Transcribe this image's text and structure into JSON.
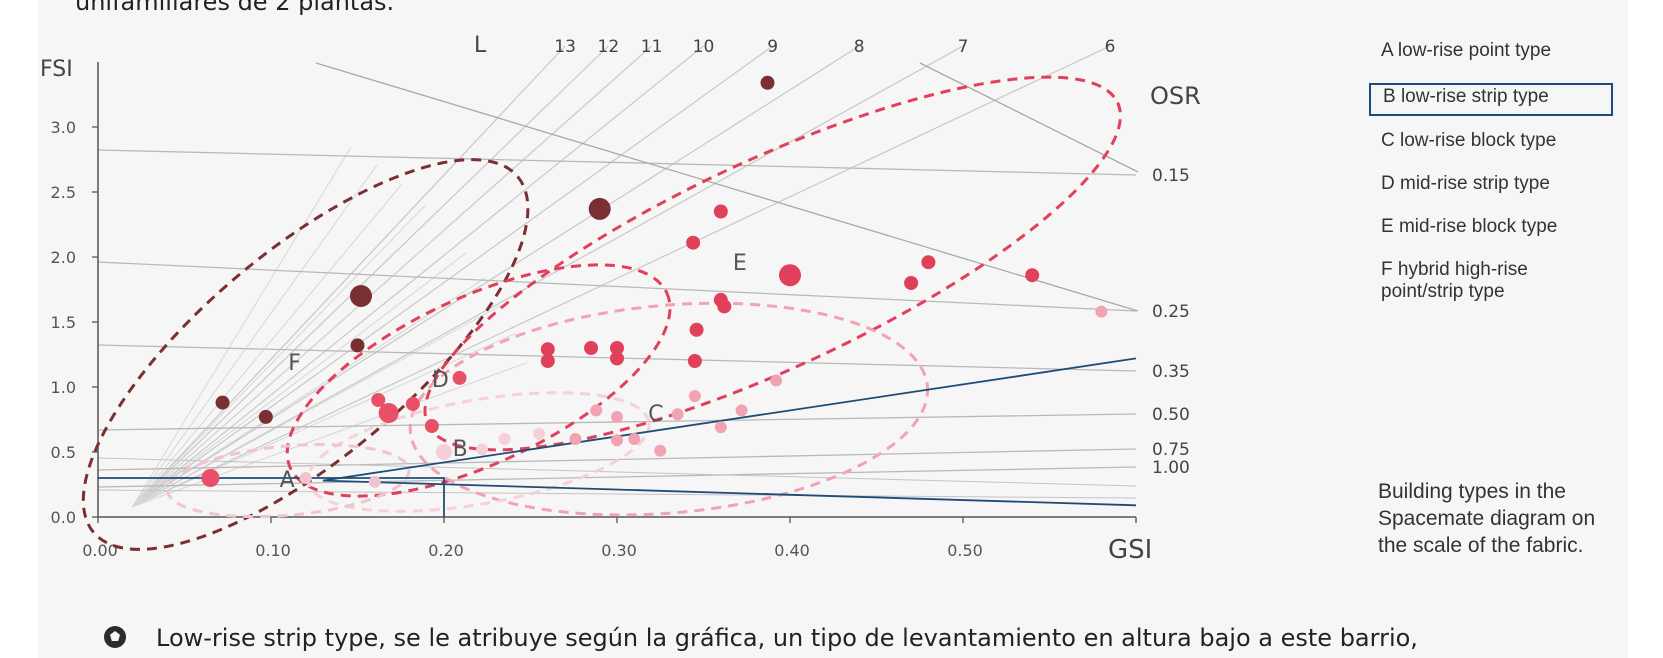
{
  "top_text": "unifamiliares de 2 plantas.",
  "bottom_text": "Low-rise strip type, se le atribuye según la gráfica, un tipo de levantamiento en altura bajo a este barrio,",
  "legend": {
    "items": [
      {
        "letter": "A",
        "text": "A  low-rise point type",
        "boxed": false
      },
      {
        "letter": "B",
        "text": "B  low-rise strip type",
        "boxed": true
      },
      {
        "letter": "C",
        "text": "C  low-rise block type",
        "boxed": false
      },
      {
        "letter": "D",
        "text": "D  mid-rise strip type",
        "boxed": false
      },
      {
        "letter": "E",
        "text": "E  mid-rise block type",
        "boxed": false
      },
      {
        "letter": "F",
        "text": "F  hybrid high-rise point/strip type",
        "boxed": false
      }
    ],
    "note": "Building types in the Spacemate diagram on the scale of the fabric."
  },
  "bullet_icon": "pentagon-bullet-icon",
  "chart_data": {
    "type": "scatter",
    "xlabel": "GSI",
    "ylabel": "FSI",
    "xlim": [
      0,
      0.6
    ],
    "ylim": [
      0,
      3.5
    ],
    "x_ticks": [
      "0.00",
      "0.10",
      "0.20",
      "0.30",
      "0.40",
      "0.50"
    ],
    "y_ticks": [
      "0.0",
      "0.5",
      "1.0",
      "1.5",
      "2.0",
      "2.5",
      "3.0"
    ],
    "l_label": "L",
    "l_values": [
      13,
      12,
      11,
      10,
      9,
      8,
      7,
      6
    ],
    "l_label_positions": [
      0.27,
      0.295,
      0.32,
      0.35,
      0.39,
      0.44,
      0.5,
      0.585
    ],
    "osr_label": "OSR",
    "osr_values": [
      "0.15",
      "0.25",
      "0.35",
      "0.50",
      "0.75",
      "1.00"
    ],
    "colors": {
      "F": "#7a2f33",
      "D": "#e8506a",
      "E": "#e0405a",
      "C": "#f2a3b3",
      "B": "#f6d0d8",
      "A": "#f0c4cf",
      "annotation_line": "#1e4c78"
    },
    "series": [
      {
        "name": "F",
        "points": [
          {
            "x": 0.072,
            "y": 0.88,
            "r": 7
          },
          {
            "x": 0.097,
            "y": 0.77,
            "r": 7
          },
          {
            "x": 0.15,
            "y": 1.32,
            "r": 7
          },
          {
            "x": 0.152,
            "y": 1.7,
            "r": 11
          },
          {
            "x": 0.29,
            "y": 2.37,
            "r": 11
          },
          {
            "x": 0.387,
            "y": 3.34,
            "r": 7
          }
        ]
      },
      {
        "name": "D",
        "points": [
          {
            "x": 0.162,
            "y": 0.9,
            "r": 7
          },
          {
            "x": 0.168,
            "y": 0.8,
            "r": 10
          },
          {
            "x": 0.182,
            "y": 0.87,
            "r": 7
          },
          {
            "x": 0.193,
            "y": 0.7,
            "r": 7
          },
          {
            "x": 0.209,
            "y": 1.07,
            "r": 7
          },
          {
            "x": 0.065,
            "y": 0.3,
            "r": 9
          }
        ]
      },
      {
        "name": "E",
        "points": [
          {
            "x": 0.26,
            "y": 1.29,
            "r": 7
          },
          {
            "x": 0.26,
            "y": 1.2,
            "r": 7
          },
          {
            "x": 0.285,
            "y": 1.3,
            "r": 7
          },
          {
            "x": 0.3,
            "y": 1.3,
            "r": 7
          },
          {
            "x": 0.3,
            "y": 1.22,
            "r": 7
          },
          {
            "x": 0.345,
            "y": 1.2,
            "r": 7
          },
          {
            "x": 0.346,
            "y": 1.44,
            "r": 7
          },
          {
            "x": 0.344,
            "y": 2.11,
            "r": 7
          },
          {
            "x": 0.36,
            "y": 2.35,
            "r": 7
          },
          {
            "x": 0.36,
            "y": 1.67,
            "r": 7
          },
          {
            "x": 0.362,
            "y": 1.62,
            "r": 7
          },
          {
            "x": 0.4,
            "y": 1.86,
            "r": 11
          },
          {
            "x": 0.47,
            "y": 1.8,
            "r": 7
          },
          {
            "x": 0.48,
            "y": 1.96,
            "r": 7
          },
          {
            "x": 0.54,
            "y": 1.86,
            "r": 7
          }
        ]
      },
      {
        "name": "C",
        "points": [
          {
            "x": 0.276,
            "y": 0.6,
            "r": 6
          },
          {
            "x": 0.288,
            "y": 0.82,
            "r": 6
          },
          {
            "x": 0.3,
            "y": 0.77,
            "r": 6
          },
          {
            "x": 0.3,
            "y": 0.59,
            "r": 6
          },
          {
            "x": 0.31,
            "y": 0.6,
            "r": 6
          },
          {
            "x": 0.325,
            "y": 0.51,
            "r": 6
          },
          {
            "x": 0.335,
            "y": 0.79,
            "r": 6
          },
          {
            "x": 0.345,
            "y": 0.93,
            "r": 6
          },
          {
            "x": 0.36,
            "y": 0.69,
            "r": 6
          },
          {
            "x": 0.372,
            "y": 0.82,
            "r": 6
          },
          {
            "x": 0.392,
            "y": 1.05,
            "r": 6
          },
          {
            "x": 0.58,
            "y": 1.58,
            "r": 6
          }
        ]
      },
      {
        "name": "B",
        "points": [
          {
            "x": 0.2,
            "y": 0.5,
            "r": 8
          },
          {
            "x": 0.222,
            "y": 0.52,
            "r": 6
          },
          {
            "x": 0.235,
            "y": 0.6,
            "r": 6
          },
          {
            "x": 0.255,
            "y": 0.64,
            "r": 6
          }
        ]
      },
      {
        "name": "A",
        "points": [
          {
            "x": 0.12,
            "y": 0.3,
            "r": 6
          },
          {
            "x": 0.16,
            "y": 0.27,
            "r": 6
          }
        ]
      }
    ],
    "cluster_labels": [
      {
        "text": "A",
        "x": 0.105,
        "y": 0.23
      },
      {
        "text": "B",
        "x": 0.205,
        "y": 0.47
      },
      {
        "text": "C",
        "x": 0.318,
        "y": 0.74
      },
      {
        "text": "D",
        "x": 0.193,
        "y": 1.0
      },
      {
        "text": "E",
        "x": 0.367,
        "y": 1.9
      },
      {
        "text": "F",
        "x": 0.11,
        "y": 1.13
      }
    ],
    "clusters": [
      {
        "name": "F",
        "cx": 0.12,
        "cy": 1.25,
        "rx": 0.16,
        "ry": 0.06,
        "rot": -40,
        "color": "#7a2f33"
      },
      {
        "name": "D",
        "cx": 0.22,
        "cy": 1.05,
        "rx": 0.12,
        "ry": 0.048,
        "rot": -25,
        "color": "#e0405a"
      },
      {
        "name": "E",
        "cx": 0.39,
        "cy": 1.95,
        "rx": 0.22,
        "ry": 0.06,
        "rot": -25,
        "color": "#e0405a"
      },
      {
        "name": "C",
        "cx": 0.33,
        "cy": 0.83,
        "rx": 0.15,
        "ry": 0.06,
        "rot": -5,
        "color": "#f2a3b3"
      },
      {
        "name": "B",
        "cx": 0.22,
        "cy": 0.5,
        "rx": 0.1,
        "ry": 0.03,
        "rot": -10,
        "color": "#f6d0d8"
      },
      {
        "name": "A",
        "cx": 0.11,
        "cy": 0.28,
        "rx": 0.07,
        "ry": 0.02,
        "rot": -5,
        "color": "#f0c4cf"
      }
    ],
    "annotation": {
      "guide_point": {
        "x": 0.2,
        "y": 0.3
      },
      "triangle_apex": {
        "x": 0.13,
        "y": 0.28
      },
      "triangle_top": {
        "x": 0.6,
        "y": 1.22
      },
      "triangle_bottom": {
        "x": 0.6,
        "y": 0.09
      }
    }
  }
}
